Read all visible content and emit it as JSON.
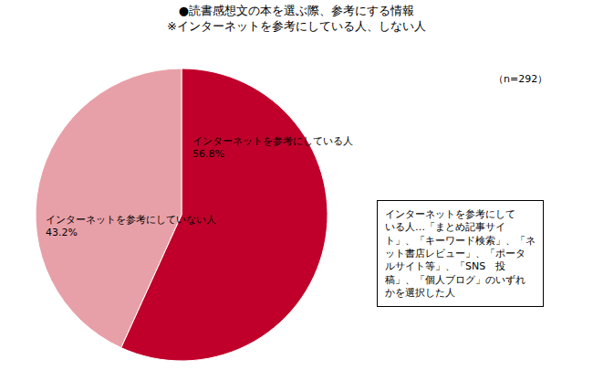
{
  "chart_data": {
    "type": "pie",
    "title": "●読書感想文の本を選ぶ際、参考にする情報",
    "subtitle": "※インターネットを参考にしている人、しない人",
    "categories": [
      "インターネットを参考にしている人",
      "インターネットを参考にしていない人"
    ],
    "values": [
      56.8,
      43.2
    ],
    "value_labels": [
      "56.8%",
      "43.2%"
    ],
    "colors": [
      "#c0002a",
      "#e8a0a8"
    ],
    "data_labels": true,
    "annotations": [
      "（n=292）",
      "インターネットを参考にして\nいる人…「まとめ記事サイ\nト」、「キーワード検索」、「ネ\nット書店レビュー」、「ポータ\nルサイト等」、「SNS　投\n稿」、「個人ブログ」のいずれ\nかを選択した人"
    ]
  }
}
